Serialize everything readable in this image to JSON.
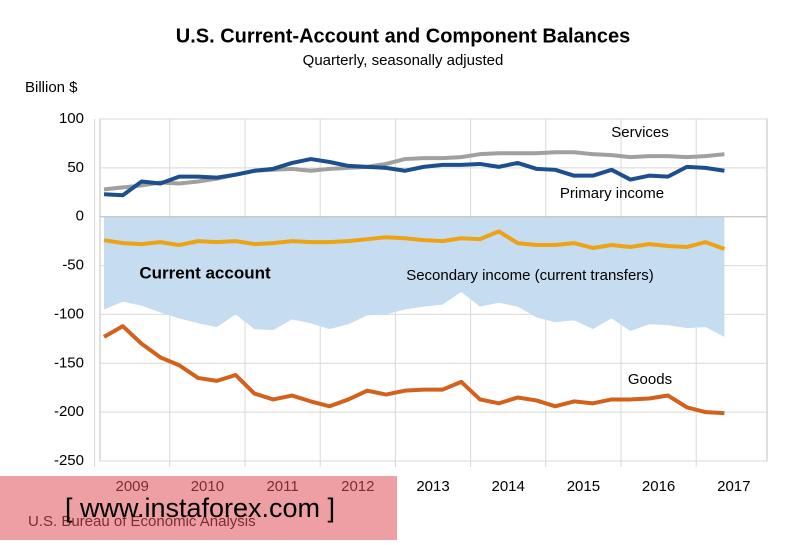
{
  "chart_data": {
    "type": "line",
    "title": "U.S. Current-Account and Component Balances",
    "subtitle": "Quarterly, seasonally adjusted",
    "y_label": "Billion $",
    "source": "U.S. Bureau of Economic Analysis",
    "watermark": "[ www.instaforex.com ]",
    "categories": [
      null,
      "2009",
      null,
      null,
      null,
      "2010",
      null,
      null,
      null,
      "2011",
      null,
      null,
      null,
      "2012",
      null,
      null,
      null,
      "2013",
      null,
      null,
      null,
      "2014",
      null,
      null,
      null,
      "2015",
      null,
      null,
      null,
      "2016",
      null,
      null,
      null,
      "2017"
    ],
    "ylim": [
      -250,
      100
    ],
    "yticks": [
      100,
      50,
      0,
      -50,
      -100,
      -150,
      -200,
      -250
    ],
    "grid": true,
    "series": [
      {
        "name": "Current account",
        "type": "area",
        "color": "#c6dcf1",
        "label_color": "#2a66ad",
        "values": [
          -95,
          -87,
          -91,
          -98,
          -104,
          -109,
          -113,
          -100,
          -115,
          -116,
          -105,
          -109,
          -115,
          -110,
          -101,
          -100,
          -95,
          -92,
          -90,
          -77,
          -92,
          -88,
          -92,
          -103,
          -108,
          -106,
          -115,
          -104,
          -117,
          -110,
          -111,
          -114,
          -113,
          -123
        ]
      },
      {
        "name": "Services",
        "type": "line",
        "color": "#a0a0a0",
        "values": [
          28,
          30,
          32,
          35,
          34,
          36,
          39,
          43,
          47,
          48,
          49,
          47,
          49,
          50,
          51,
          54,
          59,
          60,
          60,
          61,
          64,
          65,
          65,
          65,
          66,
          66,
          64,
          63,
          61,
          62,
          62,
          61,
          62,
          64
        ]
      },
      {
        "name": "Primary income",
        "type": "line",
        "color": "#1d4f8f",
        "values": [
          23,
          22,
          36,
          34,
          41,
          41,
          40,
          43,
          47,
          49,
          55,
          59,
          56,
          52,
          51,
          50,
          47,
          51,
          53,
          53,
          54,
          51,
          55,
          49,
          48,
          42,
          42,
          48,
          38,
          42,
          41,
          51,
          50,
          47
        ]
      },
      {
        "name": "Secondary income (current transfers)",
        "type": "line",
        "color": "#eda313",
        "values": [
          -24,
          -27,
          -28,
          -26,
          -29,
          -25,
          -26,
          -25,
          -28,
          -27,
          -25,
          -26,
          -26,
          -25,
          -23,
          -21,
          -22,
          -24,
          -25,
          -22,
          -23,
          -15,
          -27,
          -29,
          -29,
          -27,
          -32,
          -29,
          -31,
          -28,
          -30,
          -31,
          -26,
          -33
        ]
      },
      {
        "name": "Goods",
        "type": "line",
        "color": "#d4611b",
        "values": [
          -123,
          -112,
          -130,
          -144,
          -152,
          -165,
          -168,
          -162,
          -181,
          -187,
          -183,
          -189,
          -194,
          -187,
          -178,
          -182,
          -178,
          -177,
          -177,
          -169,
          -187,
          -191,
          -185,
          -188,
          -194,
          -189,
          -191,
          -187,
          -187,
          -186,
          -183,
          -195,
          -200,
          -201
        ]
      }
    ]
  }
}
